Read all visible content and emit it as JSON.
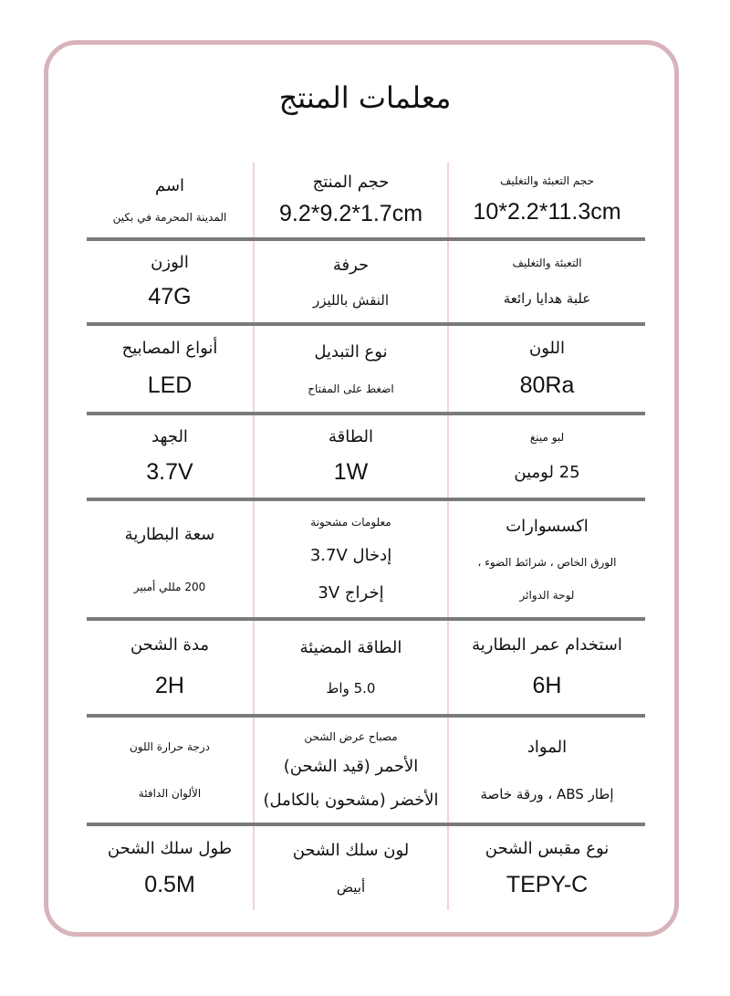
{
  "title": "معلمات المنتج",
  "rows": [
    [
      {
        "label": "حجم التعبئة والتغليف",
        "label_size": "sm",
        "values": [
          "10*2.2*11.3cm"
        ],
        "value_size": "big"
      },
      {
        "label": "حجم المنتج",
        "values": [
          "9.2*9.2*1.7cm"
        ],
        "value_size": "big"
      },
      {
        "label": "اسم",
        "values": [
          "المدينة المحرمة في بكين"
        ],
        "value_size": "sm"
      }
    ],
    [
      {
        "label": "التعبئة والتغليف",
        "label_size": "sm",
        "values": [
          "علبة هدايا رائعة"
        ],
        "value_size": "val"
      },
      {
        "label": "حرفة",
        "values": [
          "النقش بالليزر"
        ],
        "value_size": "val"
      },
      {
        "label": "الوزن",
        "values": [
          "47G"
        ],
        "value_size": "big"
      }
    ],
    [
      {
        "label": "اللون",
        "values": [
          "80Ra"
        ],
        "value_size": "big"
      },
      {
        "label": "نوع التبديل",
        "values": [
          "اضغط على المفتاح"
        ],
        "value_size": "sm"
      },
      {
        "label": "أنواع المصابيح",
        "values": [
          "LED"
        ],
        "value_size": "big"
      }
    ],
    [
      {
        "label": "لبو مينغ",
        "label_size": "sm",
        "values": [
          "25 لومين"
        ],
        "value_size": "md"
      },
      {
        "label": "الطاقة",
        "values": [
          "1W"
        ],
        "value_size": "big"
      },
      {
        "label": "الجهد",
        "values": [
          "3.7V"
        ],
        "value_size": "big"
      }
    ],
    [
      {
        "label": "اكسسوارات",
        "values": [
          "الورق الخاص ، شرائط الضوء ،",
          "لوحة الدوائر"
        ],
        "value_size": "sm"
      },
      {
        "label": "معلومات مشحونة",
        "label_size": "sm",
        "values": [
          "إدخال 3.7V",
          "إخراج 3V"
        ],
        "value_size": "md"
      },
      {
        "label": "سعة البطارية",
        "values": [
          "200 مللي أمبير"
        ],
        "value_size": "sm"
      }
    ],
    [
      {
        "label": "استخدام عمر البطارية",
        "values": [
          "6H"
        ],
        "value_size": "big"
      },
      {
        "label": "الطاقة المضيئة",
        "values": [
          "5.0 واط"
        ],
        "value_size": "val"
      },
      {
        "label": "مدة الشحن",
        "values": [
          "2H"
        ],
        "value_size": "big"
      }
    ],
    [
      {
        "label": "المواد",
        "values": [
          "إطار ABS ، ورقة خاصة"
        ],
        "value_size": "val"
      },
      {
        "label": "مصباح عرض الشحن",
        "label_size": "sm",
        "values": [
          "الأحمر (قيد الشحن)",
          "الأخضر (مشحون بالكامل)"
        ],
        "value_size": "md"
      },
      {
        "label": "درجة حرارة اللون",
        "label_size": "sm",
        "values": [
          "الألوان الدافئة"
        ],
        "value_size": "sm"
      }
    ],
    [
      {
        "label": "نوع مقبس الشحن",
        "values": [
          "TEPY-C"
        ],
        "value_size": "big"
      },
      {
        "label": "لون سلك الشحن",
        "values": [
          "أبيض"
        ],
        "value_size": "val"
      },
      {
        "label": "طول سلك الشحن",
        "values": [
          "0.5M"
        ],
        "value_size": "big"
      }
    ]
  ]
}
